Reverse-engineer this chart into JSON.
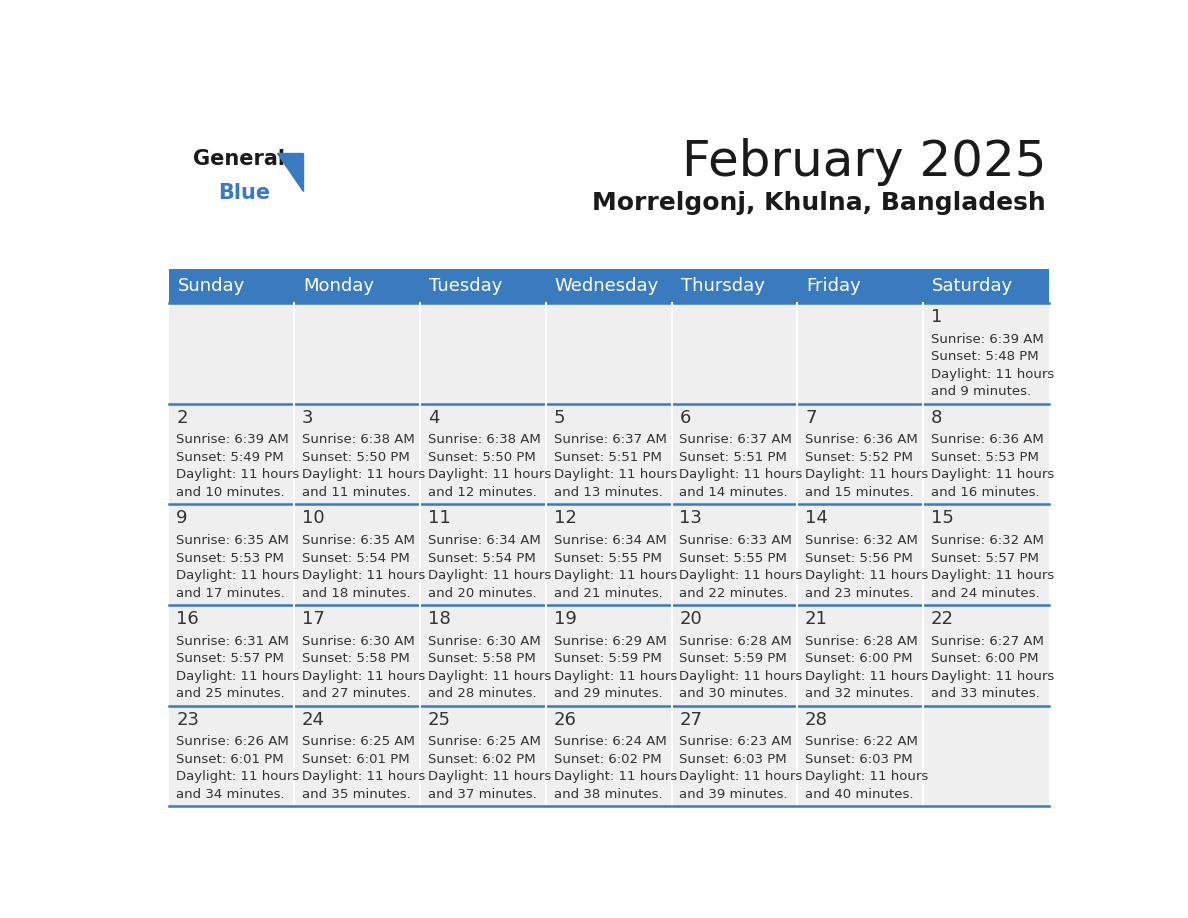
{
  "title": "February 2025",
  "subtitle": "Morrelgonj, Khulna, Bangladesh",
  "header_color": "#3a7abf",
  "header_text_color": "#ffffff",
  "cell_bg_color": "#efefef",
  "day_number_color": "#333333",
  "cell_text_color": "#333333",
  "border_color": "#3a7abf",
  "days_of_week": [
    "Sunday",
    "Monday",
    "Tuesday",
    "Wednesday",
    "Thursday",
    "Friday",
    "Saturday"
  ],
  "weeks": [
    [
      {
        "day": null,
        "info": null
      },
      {
        "day": null,
        "info": null
      },
      {
        "day": null,
        "info": null
      },
      {
        "day": null,
        "info": null
      },
      {
        "day": null,
        "info": null
      },
      {
        "day": null,
        "info": null
      },
      {
        "day": 1,
        "info": "Sunrise: 6:39 AM\nSunset: 5:48 PM\nDaylight: 11 hours\nand 9 minutes."
      }
    ],
    [
      {
        "day": 2,
        "info": "Sunrise: 6:39 AM\nSunset: 5:49 PM\nDaylight: 11 hours\nand 10 minutes."
      },
      {
        "day": 3,
        "info": "Sunrise: 6:38 AM\nSunset: 5:50 PM\nDaylight: 11 hours\nand 11 minutes."
      },
      {
        "day": 4,
        "info": "Sunrise: 6:38 AM\nSunset: 5:50 PM\nDaylight: 11 hours\nand 12 minutes."
      },
      {
        "day": 5,
        "info": "Sunrise: 6:37 AM\nSunset: 5:51 PM\nDaylight: 11 hours\nand 13 minutes."
      },
      {
        "day": 6,
        "info": "Sunrise: 6:37 AM\nSunset: 5:51 PM\nDaylight: 11 hours\nand 14 minutes."
      },
      {
        "day": 7,
        "info": "Sunrise: 6:36 AM\nSunset: 5:52 PM\nDaylight: 11 hours\nand 15 minutes."
      },
      {
        "day": 8,
        "info": "Sunrise: 6:36 AM\nSunset: 5:53 PM\nDaylight: 11 hours\nand 16 minutes."
      }
    ],
    [
      {
        "day": 9,
        "info": "Sunrise: 6:35 AM\nSunset: 5:53 PM\nDaylight: 11 hours\nand 17 minutes."
      },
      {
        "day": 10,
        "info": "Sunrise: 6:35 AM\nSunset: 5:54 PM\nDaylight: 11 hours\nand 18 minutes."
      },
      {
        "day": 11,
        "info": "Sunrise: 6:34 AM\nSunset: 5:54 PM\nDaylight: 11 hours\nand 20 minutes."
      },
      {
        "day": 12,
        "info": "Sunrise: 6:34 AM\nSunset: 5:55 PM\nDaylight: 11 hours\nand 21 minutes."
      },
      {
        "day": 13,
        "info": "Sunrise: 6:33 AM\nSunset: 5:55 PM\nDaylight: 11 hours\nand 22 minutes."
      },
      {
        "day": 14,
        "info": "Sunrise: 6:32 AM\nSunset: 5:56 PM\nDaylight: 11 hours\nand 23 minutes."
      },
      {
        "day": 15,
        "info": "Sunrise: 6:32 AM\nSunset: 5:57 PM\nDaylight: 11 hours\nand 24 minutes."
      }
    ],
    [
      {
        "day": 16,
        "info": "Sunrise: 6:31 AM\nSunset: 5:57 PM\nDaylight: 11 hours\nand 25 minutes."
      },
      {
        "day": 17,
        "info": "Sunrise: 6:30 AM\nSunset: 5:58 PM\nDaylight: 11 hours\nand 27 minutes."
      },
      {
        "day": 18,
        "info": "Sunrise: 6:30 AM\nSunset: 5:58 PM\nDaylight: 11 hours\nand 28 minutes."
      },
      {
        "day": 19,
        "info": "Sunrise: 6:29 AM\nSunset: 5:59 PM\nDaylight: 11 hours\nand 29 minutes."
      },
      {
        "day": 20,
        "info": "Sunrise: 6:28 AM\nSunset: 5:59 PM\nDaylight: 11 hours\nand 30 minutes."
      },
      {
        "day": 21,
        "info": "Sunrise: 6:28 AM\nSunset: 6:00 PM\nDaylight: 11 hours\nand 32 minutes."
      },
      {
        "day": 22,
        "info": "Sunrise: 6:27 AM\nSunset: 6:00 PM\nDaylight: 11 hours\nand 33 minutes."
      }
    ],
    [
      {
        "day": 23,
        "info": "Sunrise: 6:26 AM\nSunset: 6:01 PM\nDaylight: 11 hours\nand 34 minutes."
      },
      {
        "day": 24,
        "info": "Sunrise: 6:25 AM\nSunset: 6:01 PM\nDaylight: 11 hours\nand 35 minutes."
      },
      {
        "day": 25,
        "info": "Sunrise: 6:25 AM\nSunset: 6:02 PM\nDaylight: 11 hours\nand 37 minutes."
      },
      {
        "day": 26,
        "info": "Sunrise: 6:24 AM\nSunset: 6:02 PM\nDaylight: 11 hours\nand 38 minutes."
      },
      {
        "day": 27,
        "info": "Sunrise: 6:23 AM\nSunset: 6:03 PM\nDaylight: 11 hours\nand 39 minutes."
      },
      {
        "day": 28,
        "info": "Sunrise: 6:22 AM\nSunset: 6:03 PM\nDaylight: 11 hours\nand 40 minutes."
      },
      {
        "day": null,
        "info": null
      }
    ]
  ],
  "logo_general_color": "#1a1a1a",
  "logo_blue_color": "#3a7abf",
  "background_color": "#ffffff",
  "title_fontsize": 36,
  "subtitle_fontsize": 18,
  "day_header_fontsize": 13,
  "day_number_fontsize": 13,
  "cell_text_fontsize": 9.5
}
